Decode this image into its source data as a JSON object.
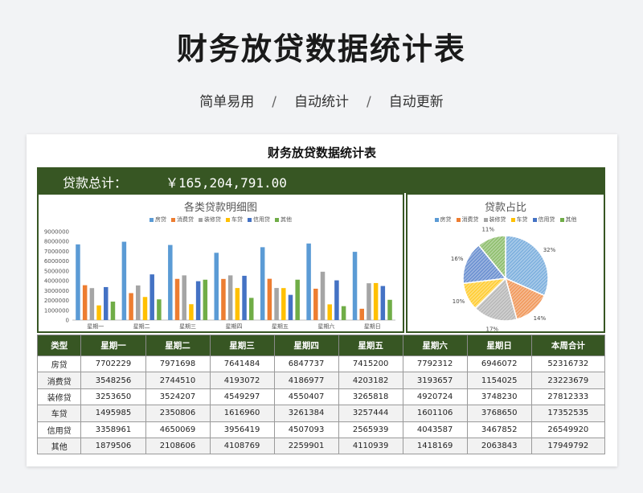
{
  "page": {
    "title": "财务放贷数据统计表",
    "features": [
      "简单易用",
      "自动统计",
      "自动更新"
    ],
    "separator": "/"
  },
  "sheet": {
    "title": "财务放贷数据统计表",
    "total_label": "贷款总计：",
    "total_value": "￥165,204,791.00"
  },
  "colors": {
    "accent": "#375623",
    "series": [
      "#5b9bd5",
      "#ed7d31",
      "#a5a5a5",
      "#ffc000",
      "#4472c4",
      "#70ad47"
    ]
  },
  "chart_data": [
    {
      "type": "bar",
      "title": "各类贷款明细图",
      "categories": [
        "星期一",
        "星期二",
        "星期三",
        "星期四",
        "星期五",
        "星期六",
        "星期日"
      ],
      "ylim": [
        0,
        9000000
      ],
      "yticks": [
        "0",
        "1000000",
        "2000000",
        "3000000",
        "4000000",
        "5000000",
        "6000000",
        "7000000",
        "8000000",
        "9000000"
      ],
      "legend_position": "top",
      "series": [
        {
          "name": "房贷",
          "values": [
            7702229,
            7971698,
            7641484,
            6847737,
            7415200,
            7792312,
            6946072
          ]
        },
        {
          "name": "消费贷",
          "values": [
            3548256,
            2744510,
            4193072,
            4186977,
            4203182,
            3193657,
            1154025
          ]
        },
        {
          "name": "装修贷",
          "values": [
            3253650,
            3524207,
            4549297,
            4550407,
            3265818,
            4920724,
            3748230
          ]
        },
        {
          "name": "车贷",
          "values": [
            1495985,
            2350806,
            1616960,
            3261384,
            3257444,
            1601106,
            3768650
          ]
        },
        {
          "name": "信用贷",
          "values": [
            3358961,
            4650069,
            3956419,
            4507093,
            2565939,
            4043587,
            3467852
          ]
        },
        {
          "name": "其他",
          "values": [
            1879506,
            2108606,
            4108769,
            2259901,
            4110939,
            1418169,
            2063843
          ]
        }
      ]
    },
    {
      "type": "pie",
      "title": "贷款占比",
      "legend_position": "top",
      "categories": [
        "房贷",
        "消费贷",
        "装修贷",
        "车贷",
        "信用贷",
        "其他"
      ],
      "values": [
        52316732,
        23223679,
        27812333,
        17352535,
        26549920,
        17949792
      ],
      "labels": [
        "32%",
        "14%",
        "17%",
        "10%",
        "16%",
        "11%"
      ]
    }
  ],
  "table": {
    "headers": [
      "类型",
      "星期一",
      "星期二",
      "星期三",
      "星期四",
      "星期五",
      "星期六",
      "星期日",
      "本周合计"
    ],
    "rows": [
      [
        "房贷",
        "7702229",
        "7971698",
        "7641484",
        "6847737",
        "7415200",
        "7792312",
        "6946072",
        "52316732"
      ],
      [
        "消费贷",
        "3548256",
        "2744510",
        "4193072",
        "4186977",
        "4203182",
        "3193657",
        "1154025",
        "23223679"
      ],
      [
        "装修贷",
        "3253650",
        "3524207",
        "4549297",
        "4550407",
        "3265818",
        "4920724",
        "3748230",
        "27812333"
      ],
      [
        "车贷",
        "1495985",
        "2350806",
        "1616960",
        "3261384",
        "3257444",
        "1601106",
        "3768650",
        "17352535"
      ],
      [
        "信用贷",
        "3358961",
        "4650069",
        "3956419",
        "4507093",
        "2565939",
        "4043587",
        "3467852",
        "26549920"
      ],
      [
        "其他",
        "1879506",
        "2108606",
        "4108769",
        "2259901",
        "4110939",
        "1418169",
        "2063843",
        "17949792"
      ]
    ]
  }
}
